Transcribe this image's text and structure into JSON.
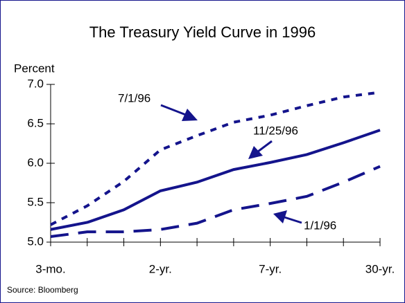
{
  "chart_data": {
    "type": "line",
    "title": "The Treasury Yield Curve in 1996",
    "y_label": "Percent",
    "source": "Source: Bloomberg",
    "categories": [
      "3-mo.",
      null,
      null,
      "2-yr.",
      null,
      null,
      "7-yr.",
      null,
      null,
      "30-yr."
    ],
    "series": [
      {
        "name": "7/1/96",
        "color": "#14148c",
        "dash": "short",
        "values": [
          5.22,
          5.46,
          5.77,
          6.17,
          6.35,
          6.52,
          6.61,
          6.73,
          6.84,
          6.9
        ]
      },
      {
        "name": "11/25/96",
        "color": "#14148c",
        "dash": "solid",
        "values": [
          5.16,
          5.25,
          5.41,
          5.65,
          5.76,
          5.92,
          6.01,
          6.11,
          6.26,
          6.42
        ]
      },
      {
        "name": "1/1/96",
        "color": "#14148c",
        "dash": "long",
        "values": [
          5.07,
          5.13,
          5.13,
          5.16,
          5.24,
          5.41,
          5.49,
          5.58,
          5.76,
          5.96
        ]
      }
    ],
    "ylim": [
      5.0,
      7.0
    ],
    "yticks": [
      {
        "value": 5,
        "label": "5.0"
      },
      5.5,
      {
        "value": 6,
        "label": "6.0"
      },
      6.5,
      {
        "value": 7,
        "label": "7.0"
      }
    ]
  }
}
